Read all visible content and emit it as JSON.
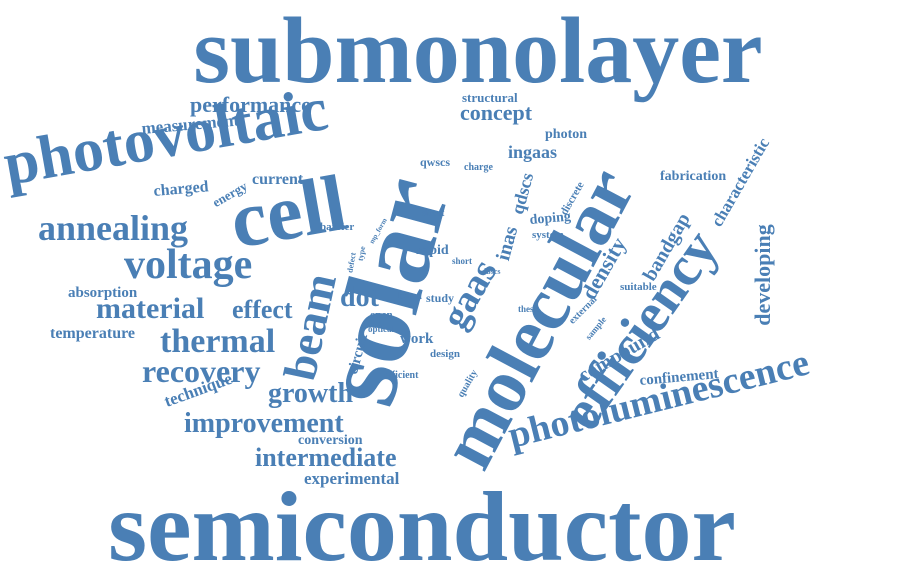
{
  "word_color": "#4a7fb5",
  "background": "#ffffff",
  "words": [
    "submonolayer",
    "semiconductor",
    "solar",
    "molecular",
    "photovoltaic",
    "cell",
    "efficiency",
    "photoluminescence",
    "beam",
    "voltage",
    "annealing",
    "gaas",
    "thermal",
    "recovery",
    "material",
    "improvement",
    "intermediate",
    "growth",
    "dot",
    "effect",
    "performance",
    "concept",
    "density",
    "bandgap",
    "inas",
    "qdscs",
    "ingaas",
    "compound",
    "developing",
    "characteristic",
    "measurement",
    "experimental",
    "technique",
    "temperature",
    "absorption",
    "charged",
    "current",
    "energy",
    "photon",
    "structural",
    "fabrication",
    "confinement",
    "conversion",
    "circuit",
    "work",
    "design",
    "rapid",
    "doping",
    "discrete",
    "system",
    "qwscs",
    "charge",
    "barrier",
    "direct",
    "short",
    "band",
    "study",
    "open",
    "optical",
    "efficient",
    "quality",
    "thesis",
    "external",
    "sample",
    "suitable",
    "ibscs",
    "defect",
    "type",
    "mp_form"
  ]
}
